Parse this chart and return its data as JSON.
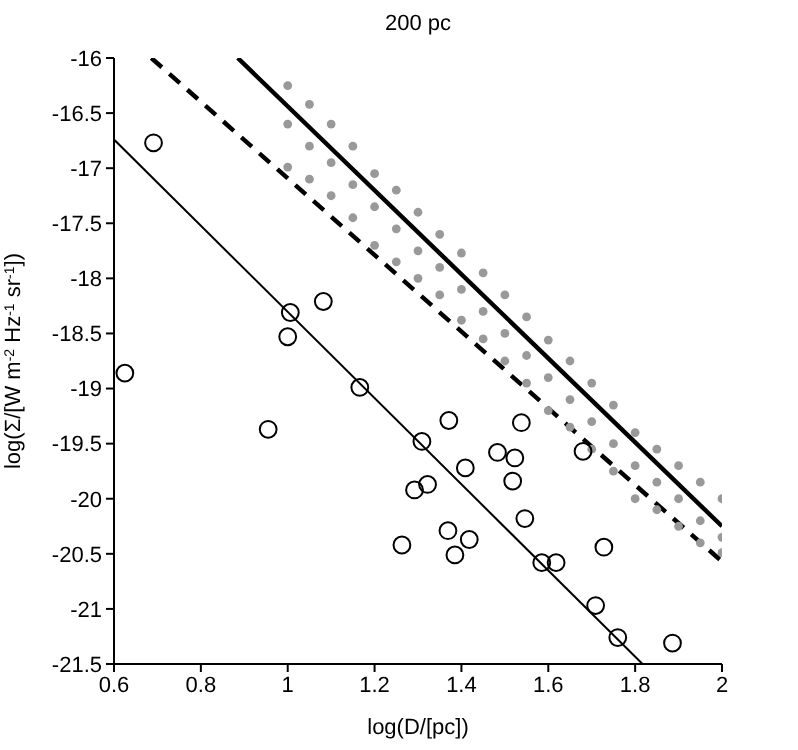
{
  "chart_data": {
    "type": "scatter",
    "title": "200 pc",
    "xlabel": "log(D/[pc])",
    "ylabel": "log(Σ/[W m$^{-2}$ Hz$^{-1}$ sr$^{-1}$])",
    "xlim": [
      0.6,
      2
    ],
    "xticks": [
      0.6,
      0.8,
      1,
      1.2,
      1.4,
      1.6,
      1.8,
      2
    ],
    "ylim": [
      -21.5,
      -16
    ],
    "yticks": [
      -21.5,
      -21,
      -20.5,
      -20,
      -19.5,
      -19,
      -18.5,
      -18,
      -17.5,
      -17,
      -16.5,
      -16
    ],
    "grid": false,
    "legend": false,
    "series": [
      {
        "marker": "circle",
        "color": "#999999",
        "x": [
          1.0,
          1.05,
          1.1,
          1.15,
          1.2,
          1.25,
          1.3,
          1.35,
          1.4,
          1.45,
          1.5,
          1.55,
          1.6,
          1.65,
          1.7,
          1.75,
          1.8,
          1.85,
          1.9,
          1.95,
          2.0,
          1.0,
          1.05,
          1.1,
          1.15,
          1.2,
          1.25,
          1.3,
          1.35,
          1.4,
          1.45,
          1.5,
          1.55,
          1.6,
          1.65,
          1.7,
          1.75,
          1.8,
          1.85,
          1.9,
          1.95,
          2.0,
          1.0,
          1.05,
          1.1,
          1.15,
          1.2,
          1.25,
          1.3,
          1.35,
          1.4,
          1.45,
          1.5,
          1.55,
          1.6,
          1.65,
          1.7,
          1.75,
          1.8,
          1.85,
          1.9,
          1.95,
          2.0
        ],
        "values": [
          -16.25,
          -16.42,
          -16.6,
          -16.8,
          -17.05,
          -17.2,
          -17.4,
          -17.6,
          -17.77,
          -17.95,
          -18.15,
          -18.35,
          -18.56,
          -18.75,
          -18.95,
          -19.15,
          -19.4,
          -19.55,
          -19.7,
          -19.85,
          -20.0,
          -16.6,
          -16.8,
          -16.95,
          -17.15,
          -17.35,
          -17.55,
          -17.75,
          -17.9,
          -18.1,
          -18.3,
          -18.5,
          -18.7,
          -18.9,
          -19.1,
          -19.3,
          -19.5,
          -19.7,
          -19.85,
          -20.0,
          -20.2,
          -20.35,
          -16.99,
          -17.1,
          -17.25,
          -17.45,
          -17.7,
          -17.85,
          -18.0,
          -18.15,
          -18.38,
          -18.55,
          -18.75,
          -18.95,
          -19.2,
          -19.35,
          -19.55,
          -19.75,
          -20.0,
          -20.1,
          -20.25,
          -20.4,
          -20.49
        ]
      },
      {
        "type": "line",
        "color": "#000000",
        "line_style": "solid",
        "x": [
          0.885,
          2
        ],
        "values": [
          -16,
          -20.25
        ]
      },
      {
        "type": "line",
        "color": "#000000",
        "line_style": "dashed",
        "x": [
          0.686,
          2
        ],
        "values": [
          -16,
          -20.57
        ]
      },
      {
        "type": "line",
        "color": "#000000",
        "line_style": "solid",
        "x": [
          0.6,
          1.817
        ],
        "values": [
          -16.74,
          -21.5
        ]
      },
      {
        "marker": "circle",
        "color": "#000000",
        "x": [
          0.625,
          0.691,
          0.955,
          1.006,
          1.0,
          1.082,
          1.166,
          1.309,
          1.292,
          1.322,
          1.263,
          1.371,
          1.409,
          1.369,
          1.385,
          1.418,
          1.483,
          1.523,
          1.518,
          1.538,
          1.546,
          1.585,
          1.618,
          1.68,
          1.728,
          1.709,
          1.76,
          1.886
        ],
        "values": [
          -18.86,
          -16.77,
          -19.37,
          -18.31,
          -18.53,
          -18.21,
          -18.99,
          -19.48,
          -19.92,
          -19.87,
          -20.42,
          -19.29,
          -19.72,
          -20.29,
          -20.51,
          -20.37,
          -19.58,
          -19.63,
          -19.84,
          -19.31,
          -20.18,
          -20.58,
          -20.58,
          -19.57,
          -20.44,
          -20.97,
          -21.26,
          -21.31
        ]
      }
    ]
  }
}
